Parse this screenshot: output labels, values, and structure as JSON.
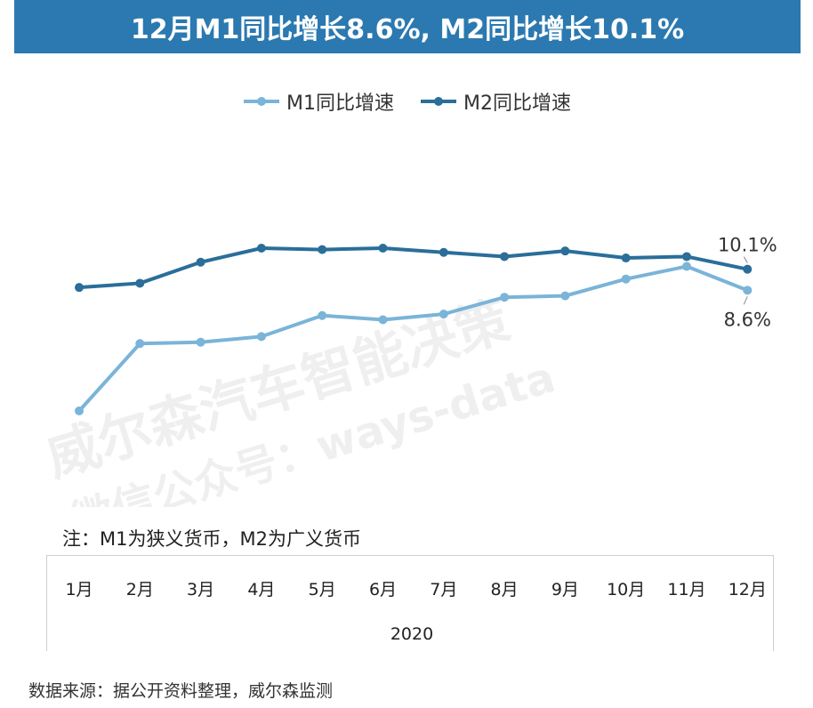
{
  "title": "12月M1同比增长8.6%, M2同比增长10.1%",
  "note": "注：M1为狭义货币，M2为广义货币",
  "source": "数据来源：据公开资料整理，威尔森监测",
  "watermark": {
    "line1": "威尔森汽车智能决策",
    "line2": "微信公众号：ways-data"
  },
  "chart_data": {
    "type": "line",
    "x": [
      "1月",
      "2月",
      "3月",
      "4月",
      "5月",
      "6月",
      "7月",
      "8月",
      "9月",
      "10月",
      "11月",
      "12月"
    ],
    "x_group_label": "2020",
    "series": [
      {
        "name": "M1同比增速",
        "color": "#7ab4d8",
        "values": [
          0.0,
          4.8,
          4.9,
          5.3,
          6.8,
          6.5,
          6.9,
          8.1,
          8.2,
          9.4,
          10.3,
          8.6
        ]
      },
      {
        "name": "M2同比增速",
        "color": "#2a6e99",
        "values": [
          8.8,
          9.1,
          10.6,
          11.6,
          11.5,
          11.6,
          11.3,
          11.0,
          11.4,
          10.9,
          11.0,
          10.1
        ]
      }
    ],
    "data_labels": [
      {
        "series": 1,
        "index": 11,
        "text": "10.1%"
      },
      {
        "series": 0,
        "index": 11,
        "text": "8.6%"
      }
    ],
    "ylim": [
      0,
      11.6
    ],
    "legend_position": "top",
    "grid": false
  }
}
